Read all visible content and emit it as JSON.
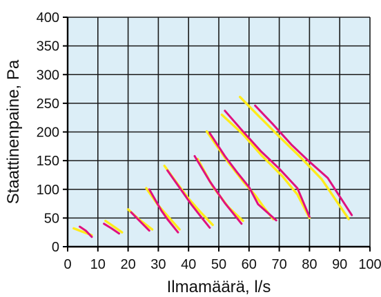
{
  "chart_data": {
    "type": "line",
    "title": "",
    "xlabel": "Ilmamäärä, l/s",
    "ylabel": "Staattinenpaine, Pa",
    "xlim": [
      0,
      100
    ],
    "ylim": [
      0,
      400
    ],
    "xticks": [
      0,
      10,
      20,
      30,
      40,
      50,
      60,
      70,
      80,
      90,
      100
    ],
    "yticks": [
      0,
      50,
      100,
      150,
      200,
      250,
      300,
      350,
      400
    ],
    "grid": true,
    "plot_background": "#DCEEF7",
    "series_colors": {
      "magenta": "#E0117E",
      "yellow": "#FFEB1A"
    },
    "segments": [
      {
        "magenta": [
          [
            4,
            35
          ],
          [
            6,
            28
          ],
          [
            8,
            17
          ]
        ],
        "yellow": [
          [
            2,
            32
          ],
          [
            5,
            26
          ],
          [
            8,
            20
          ]
        ]
      },
      {
        "magenta": [
          [
            12,
            40
          ],
          [
            14.5,
            32
          ],
          [
            17,
            23
          ]
        ],
        "yellow": [
          [
            12.5,
            45
          ],
          [
            15,
            36
          ],
          [
            18,
            25
          ]
        ]
      },
      {
        "magenta": [
          [
            21,
            60
          ],
          [
            24,
            44
          ],
          [
            27,
            28
          ]
        ],
        "yellow": [
          [
            20,
            65
          ],
          [
            23.5,
            48
          ],
          [
            28,
            30
          ]
        ]
      },
      {
        "magenta": [
          [
            27,
            100
          ],
          [
            31,
            63
          ],
          [
            33,
            48
          ],
          [
            36.5,
            25
          ]
        ],
        "yellow": [
          [
            26,
            102
          ],
          [
            30,
            72
          ],
          [
            37,
            30
          ]
        ]
      },
      {
        "magenta": [
          [
            33,
            133
          ],
          [
            37,
            103
          ],
          [
            41,
            73
          ],
          [
            44,
            53
          ],
          [
            47,
            33
          ]
        ],
        "yellow": [
          [
            32,
            141
          ],
          [
            36,
            112
          ],
          [
            40,
            84
          ],
          [
            44,
            60
          ],
          [
            48,
            38
          ]
        ]
      },
      {
        "magenta": [
          [
            42,
            158
          ],
          [
            47,
            114
          ],
          [
            52,
            76
          ],
          [
            57.5,
            40
          ]
        ],
        "yellow": [
          [
            43,
            153
          ],
          [
            48,
            105
          ],
          [
            53,
            70
          ],
          [
            58,
            45
          ]
        ]
      },
      {
        "magenta": [
          [
            47,
            198
          ],
          [
            52,
            158
          ],
          [
            56,
            130
          ],
          [
            60,
            104
          ],
          [
            63,
            74
          ],
          [
            69,
            46
          ]
        ],
        "yellow": [
          [
            46,
            201
          ],
          [
            53,
            148
          ],
          [
            58,
            114
          ],
          [
            62,
            90
          ],
          [
            65,
            68
          ],
          [
            68,
            48
          ]
        ]
      },
      {
        "magenta": [
          [
            52,
            237
          ],
          [
            58,
            201
          ],
          [
            64,
            166
          ],
          [
            70,
            136
          ],
          [
            76,
            102
          ],
          [
            80,
            52
          ]
        ],
        "yellow": [
          [
            51,
            230
          ],
          [
            58,
            196
          ],
          [
            64,
            160
          ],
          [
            71,
            123
          ],
          [
            76,
            91
          ],
          [
            80,
            50
          ]
        ]
      },
      {
        "magenta": [
          [
            62,
            246
          ],
          [
            68,
            213
          ],
          [
            74,
            178
          ],
          [
            80,
            148
          ],
          [
            86,
            120
          ],
          [
            94,
            55
          ]
        ],
        "yellow": [
          [
            57,
            261
          ],
          [
            63,
            229
          ],
          [
            70,
            192
          ],
          [
            77,
            156
          ],
          [
            84,
            118
          ],
          [
            93,
            48
          ]
        ]
      }
    ]
  }
}
